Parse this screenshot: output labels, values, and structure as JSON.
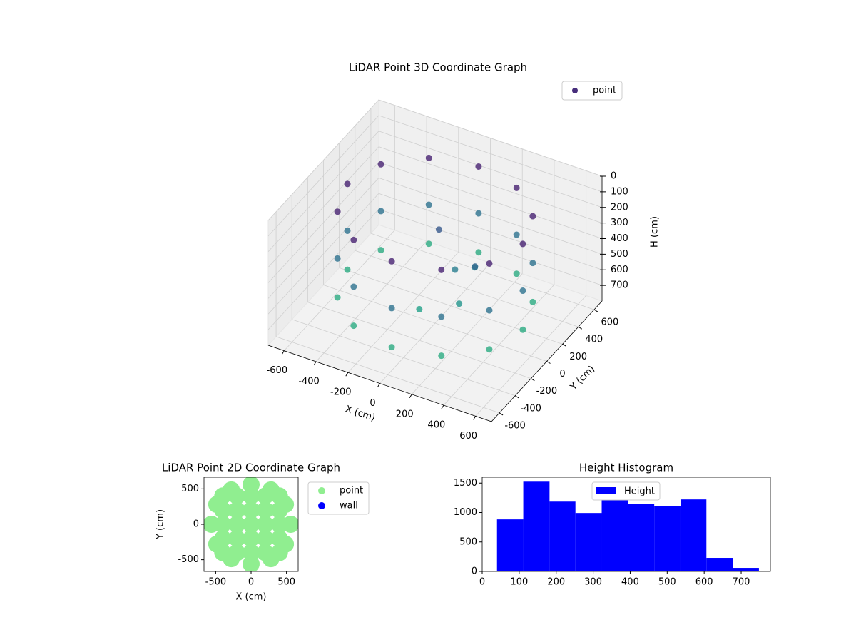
{
  "chart_data": [
    {
      "type": "scatter3d",
      "title": "LiDAR Point 3D Coordinate Graph",
      "xlabel": "X (cm)",
      "ylabel": "Y (cm)",
      "zlabel": "H (cm)",
      "xlim": [
        -700,
        700
      ],
      "ylim": [
        -700,
        700
      ],
      "zlim": [
        0,
        800
      ],
      "z_inverted": true,
      "xticks": [
        -600,
        -400,
        -200,
        0,
        200,
        400,
        600
      ],
      "yticks": [
        -600,
        -400,
        -200,
        0,
        200,
        400,
        600
      ],
      "zticks": [
        0,
        100,
        200,
        300,
        400,
        500,
        600,
        700
      ],
      "colormap": "viridis",
      "legend": "upper right",
      "grid": true,
      "series": [
        {
          "name": "point",
          "color": "#472d7b",
          "x": [
            550,
            550,
            550,
            476,
            476,
            476,
            275,
            275,
            275,
            0,
            0,
            0,
            -275,
            -275,
            -275,
            -476,
            -476,
            -476,
            -550,
            -550,
            -550,
            -476,
            -476,
            -476,
            -275,
            -275,
            -275,
            0,
            0,
            0,
            275,
            275,
            275,
            476,
            476,
            476,
            100,
            200,
            -50,
            150,
            0,
            250
          ],
          "y": [
            0,
            0,
            0,
            275,
            275,
            275,
            476,
            476,
            476,
            550,
            550,
            550,
            476,
            476,
            476,
            275,
            275,
            275,
            0,
            0,
            0,
            -275,
            -275,
            -275,
            -476,
            -476,
            -476,
            -550,
            -550,
            -550,
            -476,
            -476,
            -476,
            -275,
            -275,
            -275,
            50,
            -100,
            150,
            200,
            -200,
            0
          ],
          "h": [
            100,
            400,
            650,
            100,
            400,
            650,
            100,
            400,
            650,
            100,
            400,
            650,
            100,
            400,
            650,
            100,
            400,
            650,
            100,
            400,
            650,
            100,
            400,
            650,
            100,
            400,
            650,
            100,
            400,
            650,
            100,
            400,
            650,
            100,
            400,
            650,
            450,
            550,
            300,
            500,
            600,
            350
          ]
        }
      ]
    },
    {
      "type": "scatter",
      "title": "LiDAR Point 2D Coordinate Graph",
      "xlabel": "X (cm)",
      "ylabel": "Y (cm)",
      "xlim": [
        -665,
        665
      ],
      "ylim": [
        -665,
        665
      ],
      "xticks": [
        -500,
        0,
        500
      ],
      "yticks": [
        -500,
        0,
        500
      ],
      "legend": "outside upper right",
      "series": [
        {
          "name": "point",
          "color": "#90ee90",
          "x": [
            -400,
            -200,
            0,
            200,
            400,
            -400,
            -200,
            0,
            200,
            400,
            -400,
            -200,
            0,
            200,
            400,
            -400,
            -200,
            0,
            200,
            400,
            -400,
            -200,
            0,
            200,
            400,
            560,
            485,
            280,
            0,
            -280,
            -485,
            -560,
            -485,
            -280,
            0,
            280,
            485
          ],
          "y": [
            0,
            0,
            0,
            0,
            0,
            200,
            200,
            200,
            200,
            200,
            -200,
            -200,
            -200,
            -200,
            -200,
            400,
            400,
            400,
            400,
            400,
            -400,
            -400,
            -400,
            -400,
            -400,
            0,
            280,
            485,
            560,
            485,
            280,
            0,
            -280,
            -485,
            -560,
            -485,
            -280
          ]
        },
        {
          "name": "wall",
          "color": "#0000ff",
          "x": [],
          "y": []
        }
      ]
    },
    {
      "type": "histogram",
      "title": "Height Histogram",
      "name": "Height",
      "color": "#0000ff",
      "bins": [
        40,
        111,
        182,
        252,
        323,
        394,
        465,
        536,
        606,
        677,
        748
      ],
      "values": [
        883,
        1524,
        1185,
        992,
        1210,
        1149,
        1113,
        1222,
        230,
        60
      ],
      "xlim": [
        0,
        779
      ],
      "ylim": [
        0,
        1600
      ],
      "xticks": [
        0,
        100,
        200,
        300,
        400,
        500,
        600,
        700
      ],
      "yticks": [
        0,
        500,
        1000,
        1500
      ],
      "legend": "upper center"
    }
  ]
}
